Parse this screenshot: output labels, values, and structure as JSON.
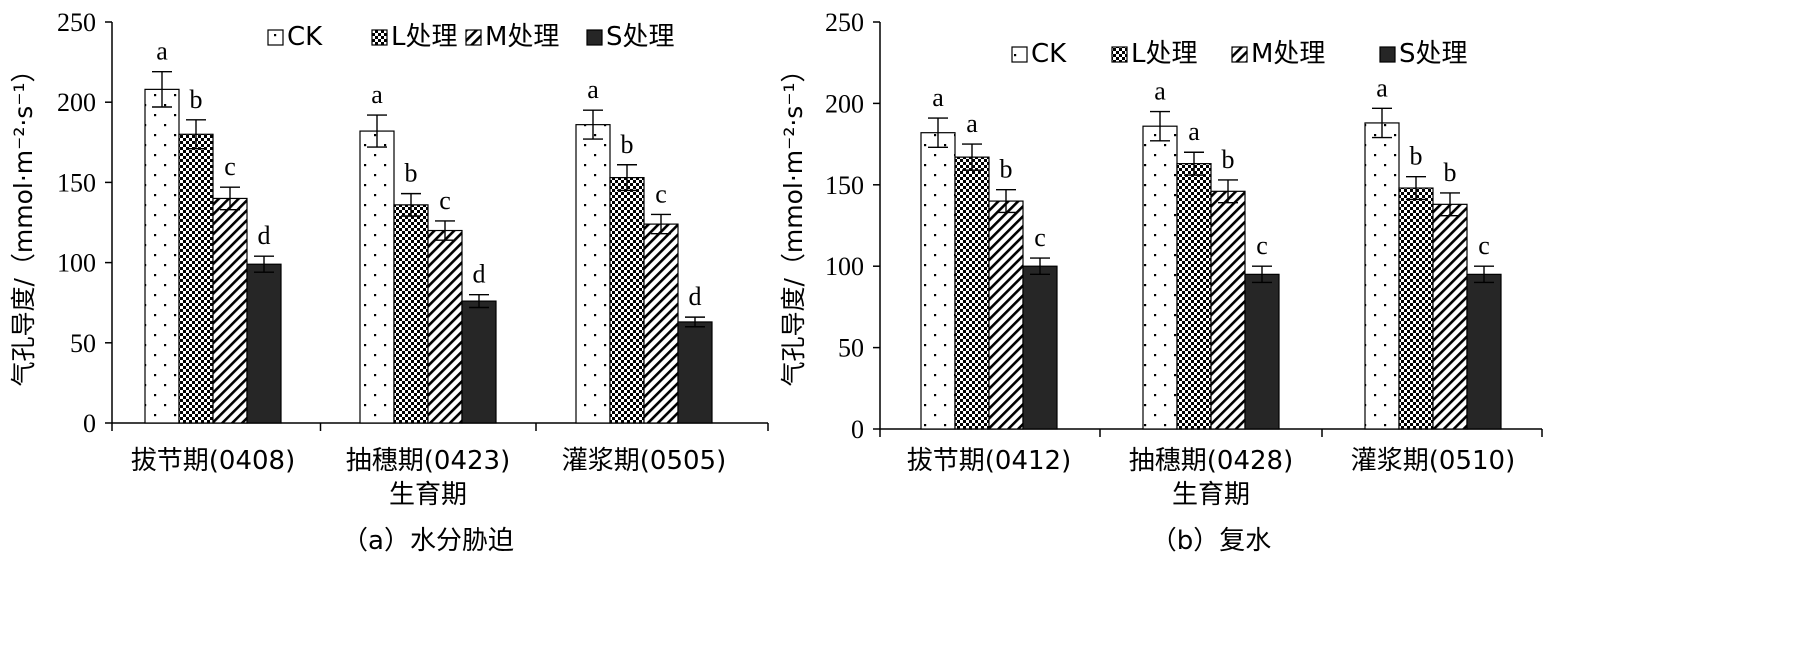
{
  "chart_data": [
    {
      "type": "bar",
      "caption": "（a）水分胁迫",
      "xlabel": "生育期",
      "ylabel": "气孔导度/（mmol·m⁻²·s⁻¹）",
      "ylim": [
        0,
        250
      ],
      "yticks": [
        "0",
        "50",
        "100",
        "150",
        "200",
        "250"
      ],
      "categories": [
        "拔节期(0408)",
        "抽穗期(0423)",
        "灌浆期(0505)"
      ],
      "legend_position": "top",
      "series": [
        {
          "name": "CK",
          "values": [
            208,
            182,
            186
          ],
          "errors": [
            11,
            10,
            9
          ],
          "letters": [
            "a",
            "a",
            "a"
          ]
        },
        {
          "name": "L处理",
          "values": [
            180,
            136,
            153
          ],
          "errors": [
            9,
            7,
            8
          ],
          "letters": [
            "b",
            "b",
            "b"
          ]
        },
        {
          "name": "M处理",
          "values": [
            140,
            120,
            124
          ],
          "errors": [
            7,
            6,
            6
          ],
          "letters": [
            "c",
            "c",
            "c"
          ]
        },
        {
          "name": "S处理",
          "values": [
            99,
            76,
            63
          ],
          "errors": [
            5,
            4,
            3
          ],
          "letters": [
            "d",
            "d",
            "d"
          ]
        }
      ]
    },
    {
      "type": "bar",
      "caption": "（b）复水",
      "xlabel": "生育期",
      "ylabel": "气孔导度/（mmol·m⁻²·s⁻¹）",
      "ylim": [
        0,
        250
      ],
      "yticks": [
        "0",
        "50",
        "100",
        "150",
        "200",
        "250"
      ],
      "categories": [
        "拔节期(0412)",
        "抽穗期(0428)",
        "灌浆期(0510)"
      ],
      "legend_position": "top",
      "series": [
        {
          "name": "CK",
          "values": [
            182,
            186,
            188
          ],
          "errors": [
            9,
            9,
            9
          ],
          "letters": [
            "a",
            "a",
            "a"
          ]
        },
        {
          "name": "L处理",
          "values": [
            167,
            163,
            148
          ],
          "errors": [
            8,
            7,
            7
          ],
          "letters": [
            "a",
            "a",
            "b"
          ]
        },
        {
          "name": "M处理",
          "values": [
            140,
            146,
            138
          ],
          "errors": [
            7,
            7,
            7
          ],
          "letters": [
            "b",
            "b",
            "b"
          ]
        },
        {
          "name": "S处理",
          "values": [
            100,
            95,
            95
          ],
          "errors": [
            5,
            5,
            5
          ],
          "letters": [
            "c",
            "c",
            "c"
          ]
        }
      ]
    }
  ]
}
